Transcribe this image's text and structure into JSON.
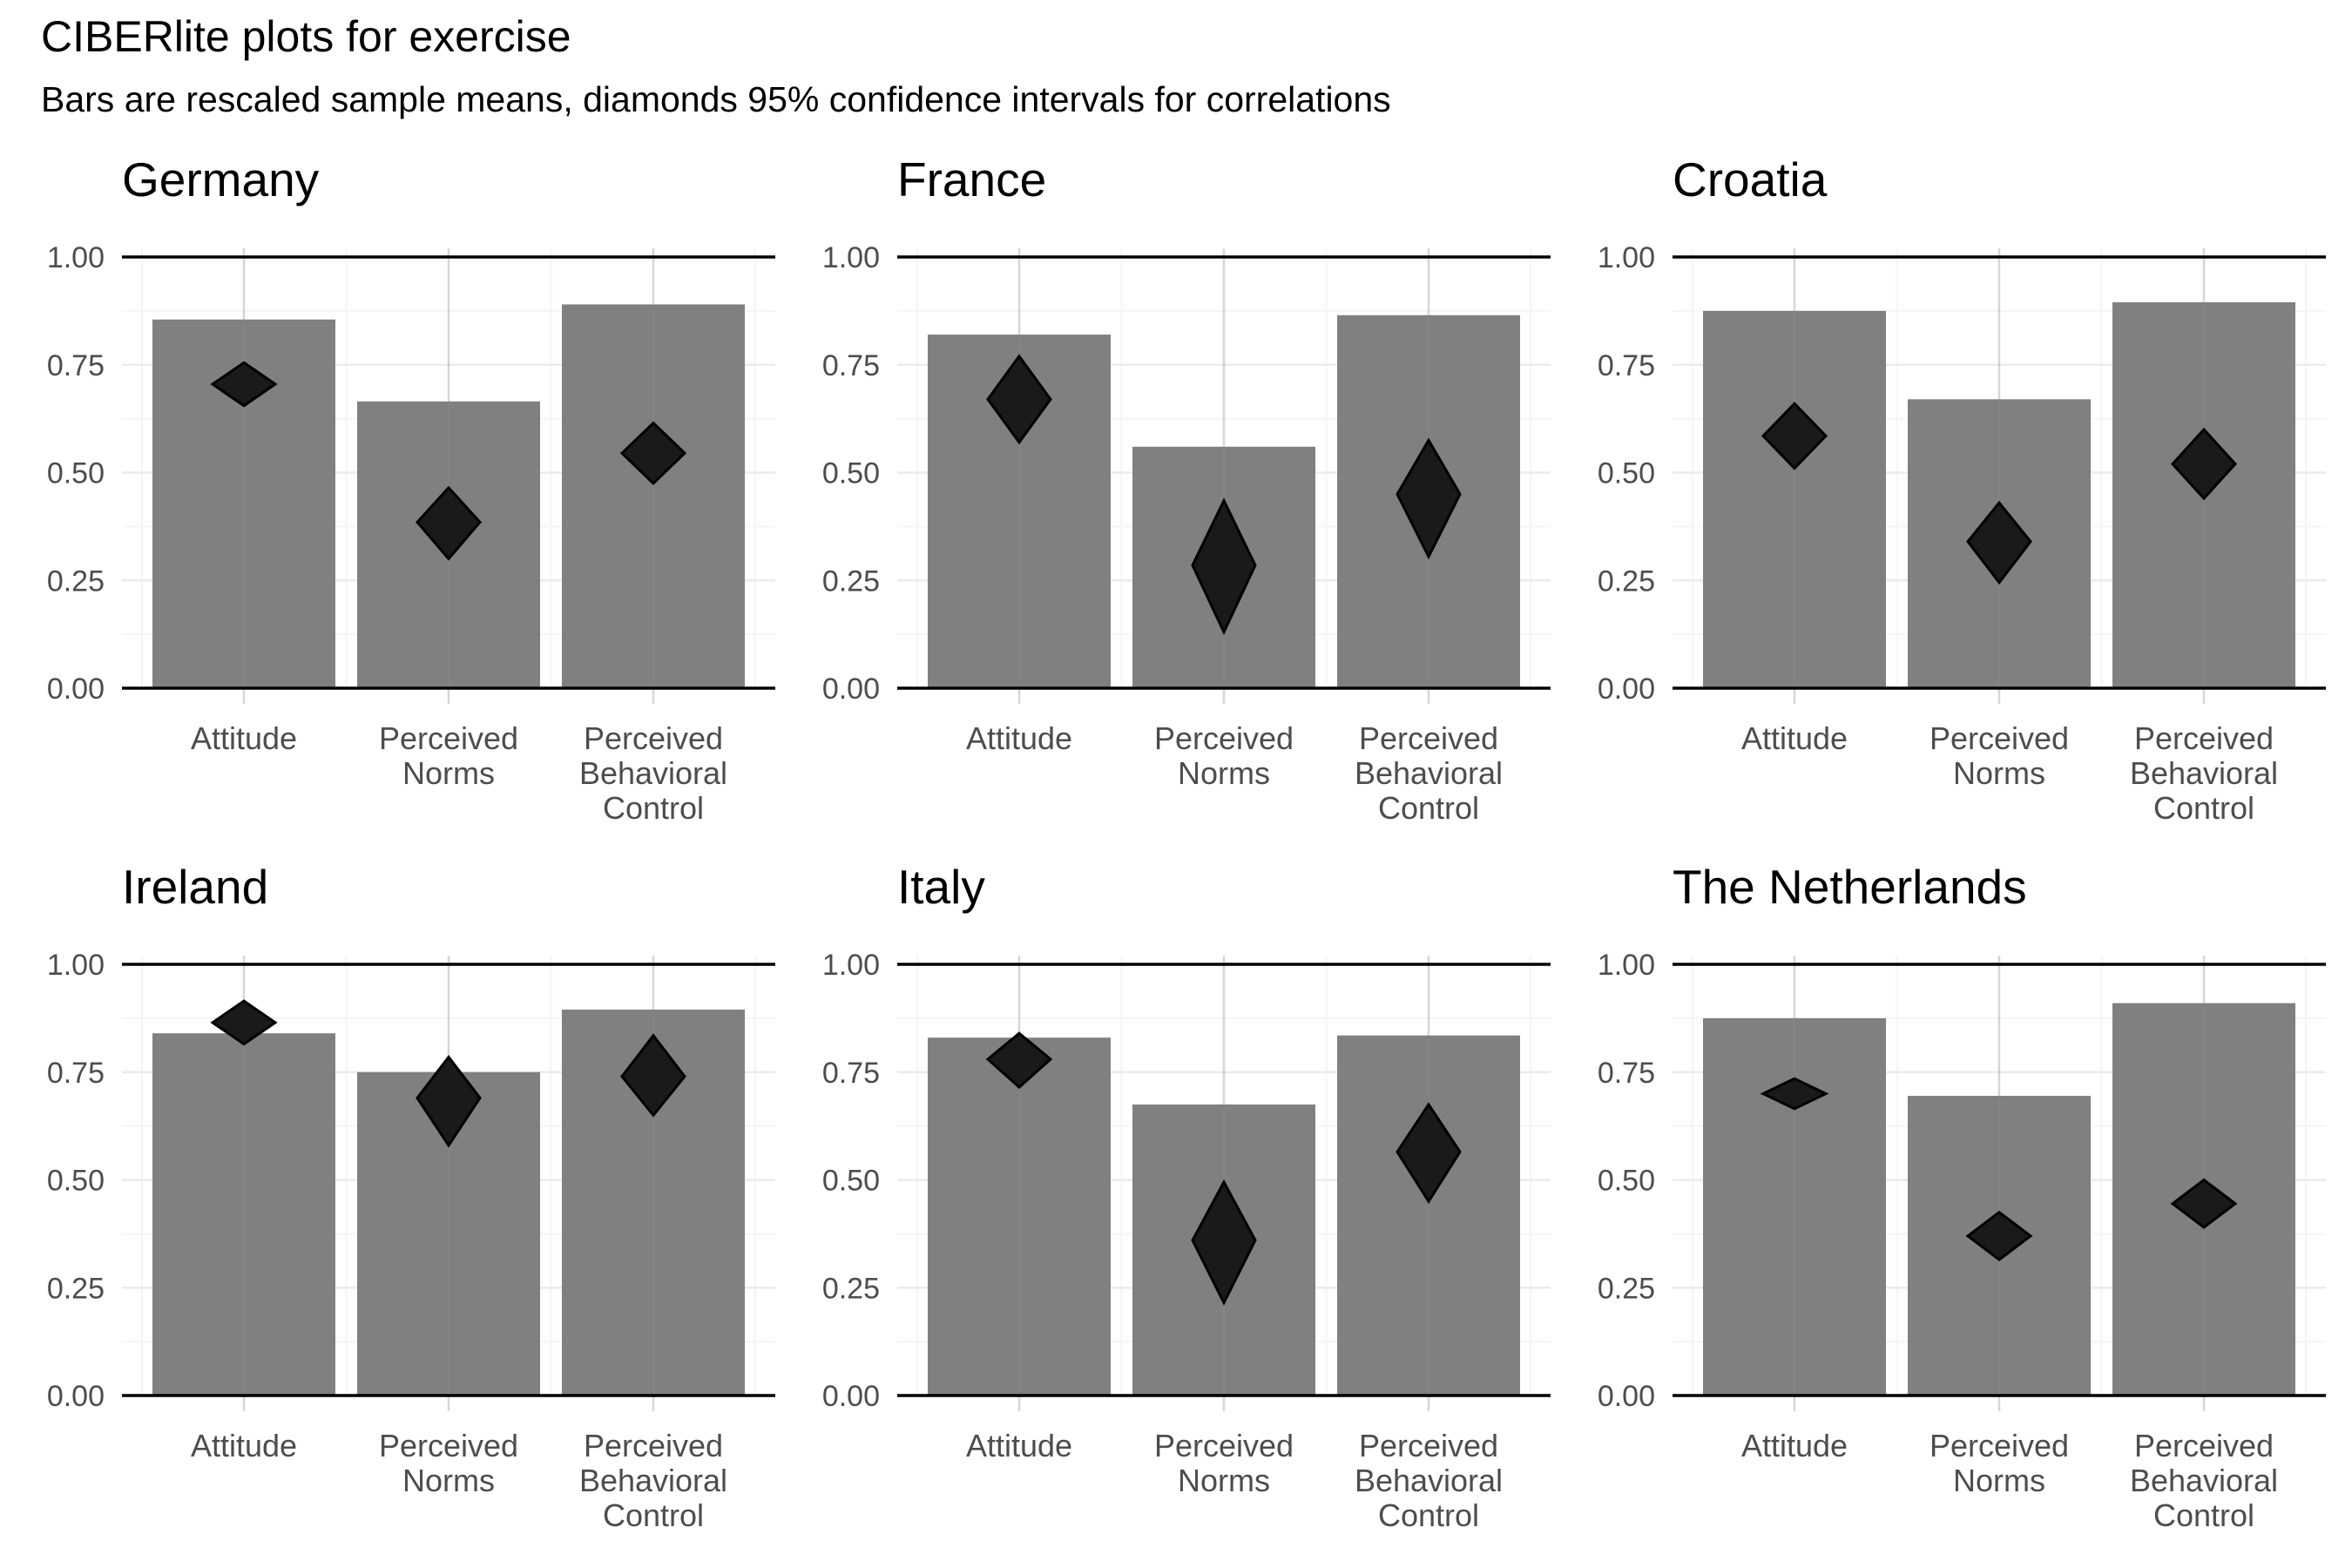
{
  "title": "CIBERlite plots for exercise",
  "subtitle": "Bars are rescaled sample means, diamonds 95% confidence intervals for correlations",
  "chart_data": {
    "type": "bar",
    "categories": [
      [
        "Attitude"
      ],
      [
        "Perceived",
        "Norms"
      ],
      [
        "Perceived",
        "Behavioral",
        "Control"
      ]
    ],
    "y_ticks": [
      "0.00",
      "0.25",
      "0.50",
      "0.75",
      "1.00"
    ],
    "ylim": [
      0,
      1
    ],
    "grid": true,
    "colors": {
      "bar": "#808080",
      "diamond": "#1a1a1a",
      "grid_major": "#ebebeb",
      "grid_minor": "#f5f5f5",
      "axis": "#000000"
    },
    "panels": [
      {
        "name": "Germany",
        "bars": [
          0.855,
          0.665,
          0.89
        ],
        "ci": [
          {
            "lo": 0.655,
            "mid": 0.705,
            "hi": 0.755
          },
          {
            "lo": 0.3,
            "mid": 0.385,
            "hi": 0.465
          },
          {
            "lo": 0.475,
            "mid": 0.545,
            "hi": 0.615
          }
        ]
      },
      {
        "name": "France",
        "bars": [
          0.82,
          0.56,
          0.865
        ],
        "ci": [
          {
            "lo": 0.57,
            "mid": 0.67,
            "hi": 0.77
          },
          {
            "lo": 0.13,
            "mid": 0.285,
            "hi": 0.435
          },
          {
            "lo": 0.305,
            "mid": 0.45,
            "hi": 0.575
          }
        ]
      },
      {
        "name": "Croatia",
        "bars": [
          0.875,
          0.67,
          0.895
        ],
        "ci": [
          {
            "lo": 0.51,
            "mid": 0.585,
            "hi": 0.66
          },
          {
            "lo": 0.245,
            "mid": 0.34,
            "hi": 0.43
          },
          {
            "lo": 0.44,
            "mid": 0.52,
            "hi": 0.6
          }
        ]
      },
      {
        "name": "Ireland",
        "bars": [
          0.84,
          0.75,
          0.895
        ],
        "ci": [
          {
            "lo": 0.815,
            "mid": 0.865,
            "hi": 0.915
          },
          {
            "lo": 0.58,
            "mid": 0.69,
            "hi": 0.785
          },
          {
            "lo": 0.65,
            "mid": 0.74,
            "hi": 0.835
          }
        ]
      },
      {
        "name": "Italy",
        "bars": [
          0.83,
          0.675,
          0.835
        ],
        "ci": [
          {
            "lo": 0.715,
            "mid": 0.78,
            "hi": 0.84
          },
          {
            "lo": 0.215,
            "mid": 0.36,
            "hi": 0.495
          },
          {
            "lo": 0.45,
            "mid": 0.565,
            "hi": 0.675
          }
        ]
      },
      {
        "name": "The Netherlands",
        "bars": [
          0.875,
          0.695,
          0.91
        ],
        "ci": [
          {
            "lo": 0.665,
            "mid": 0.7,
            "hi": 0.735
          },
          {
            "lo": 0.315,
            "mid": 0.37,
            "hi": 0.425
          },
          {
            "lo": 0.39,
            "mid": 0.445,
            "hi": 0.5
          }
        ]
      }
    ]
  }
}
